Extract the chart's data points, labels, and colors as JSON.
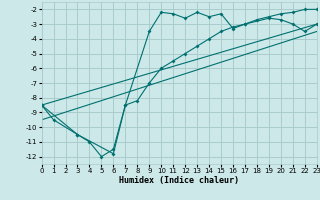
{
  "xlabel": "Humidex (Indice chaleur)",
  "background_color": "#cce8e8",
  "grid_color": "#aacccc",
  "line_color": "#007070",
  "xlim": [
    0,
    23
  ],
  "ylim": [
    -12.5,
    -1.5
  ],
  "yticks": [
    -12,
    -11,
    -10,
    -9,
    -8,
    -7,
    -6,
    -5,
    -4,
    -3,
    -2
  ],
  "xticks": [
    0,
    1,
    2,
    3,
    4,
    5,
    6,
    7,
    8,
    9,
    10,
    11,
    12,
    13,
    14,
    15,
    16,
    17,
    18,
    19,
    20,
    21,
    22,
    23
  ],
  "curve1_x": [
    0,
    1,
    3,
    4,
    5,
    6,
    7,
    9,
    10,
    11,
    12,
    13,
    14,
    15,
    16,
    17,
    19,
    20,
    21,
    22,
    23
  ],
  "curve1_y": [
    -8.5,
    -9.5,
    -10.5,
    -11.0,
    -12.0,
    -11.5,
    -8.5,
    -3.5,
    -2.2,
    -2.3,
    -2.6,
    -2.2,
    -2.5,
    -2.3,
    -3.3,
    -3.0,
    -2.6,
    -2.7,
    -3.0,
    -3.5,
    -3.0
  ],
  "curve2_x": [
    0,
    3,
    6,
    7,
    8,
    9,
    10,
    11,
    12,
    13,
    14,
    15,
    16,
    17,
    18,
    19,
    20,
    21,
    22,
    23
  ],
  "curve2_y": [
    -8.5,
    -10.5,
    -11.8,
    -8.5,
    -8.2,
    -7.0,
    -6.0,
    -5.5,
    -5.0,
    -4.5,
    -4.0,
    -3.5,
    -3.2,
    -3.0,
    -2.7,
    -2.5,
    -2.3,
    -2.2,
    -2.0,
    -2.0
  ],
  "curve3_x": [
    0,
    23
  ],
  "curve3_y": [
    -8.5,
    -3.0
  ],
  "curve4_x": [
    0,
    23
  ],
  "curve4_y": [
    -9.5,
    -3.5
  ]
}
